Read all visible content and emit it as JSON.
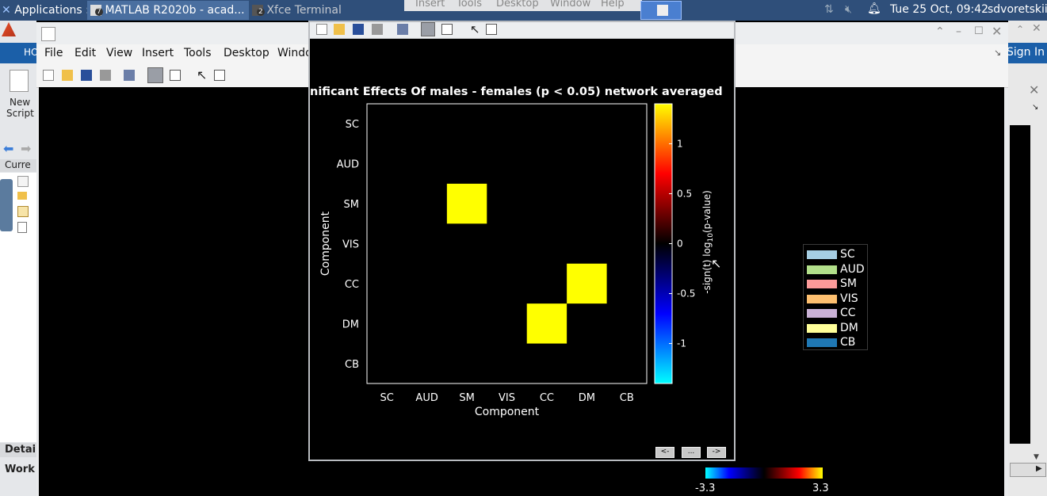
{
  "panel": {
    "apps_label": "Applications",
    "task_matlab": "MATLAB R2020b - acad...",
    "task_matlab_count": "7",
    "task_terminal": "Xfce Terminal",
    "task_terminal_count": "2",
    "overlap_menu": [
      "Insert",
      "Tools",
      "Desktop",
      "Window",
      "Help"
    ],
    "clock": "Tue 25 Oct, 09:42",
    "user": "sdvoretskii"
  },
  "matlab": {
    "menu": [
      "File",
      "Edit",
      "View",
      "Insert",
      "Tools",
      "Desktop",
      "Windo"
    ],
    "home_tab": "HO",
    "new_script_line1": "New",
    "new_script_line2": "Script",
    "current_folder": "Curre",
    "details": "Detai",
    "workspace": "Work",
    "sign_in": "Sign In"
  },
  "figure": {
    "title": "nificant Effects Of males - females (p < 0.05) network averaged"
  },
  "chart_data": {
    "type": "heatmap",
    "title": "nificant Effects Of males - females (p < 0.05) network averaged",
    "xlabel": "Component",
    "ylabel": "Component",
    "x_categories": [
      "SC",
      "AUD",
      "SM",
      "VIS",
      "CC",
      "DM",
      "CB"
    ],
    "y_categories": [
      "SC",
      "AUD",
      "SM",
      "VIS",
      "CC",
      "DM",
      "CB"
    ],
    "cells": [
      {
        "row": "SM",
        "col": "SM",
        "value": 1.4
      },
      {
        "row": "CC",
        "col": "DM",
        "value": 1.4
      },
      {
        "row": "DM",
        "col": "CC",
        "value": 1.4
      }
    ],
    "background_value": 0,
    "colorbar": {
      "label_pre": "-sign(t) log",
      "label_sub": "10",
      "label_post": "(p-value)",
      "range": [
        -1.4,
        1.4
      ],
      "ticks": [
        "1",
        "0.5",
        "0",
        "-0.5",
        "-1"
      ],
      "tick_values": [
        1,
        0.5,
        0,
        -0.5,
        -1
      ],
      "colormap_low": "#00ffff",
      "colormap_mid": "#000000",
      "colormap_high": "#ffff00"
    },
    "grid": false
  },
  "legend": {
    "items": [
      {
        "label": "SC",
        "color": "#a6cee3"
      },
      {
        "label": "AUD",
        "color": "#b2df8a"
      },
      {
        "label": "SM",
        "color": "#fb9a99"
      },
      {
        "label": "VIS",
        "color": "#fdbf6f"
      },
      {
        "label": "CC",
        "color": "#cab2d6"
      },
      {
        "label": "DM",
        "color": "#ffff99"
      },
      {
        "label": "CB",
        "color": "#1f78b4"
      }
    ]
  },
  "bottom_colorbar": {
    "min": "-3.3",
    "max": "3.3"
  },
  "nav": {
    "prev": "<-",
    "mid": "...",
    "next": "->"
  }
}
